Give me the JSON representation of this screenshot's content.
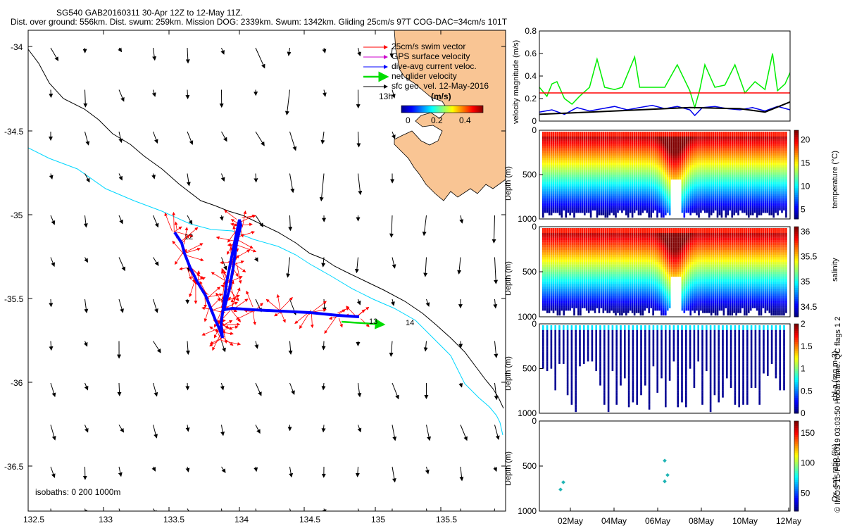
{
  "header": {
    "line1": "SG540 GAB20160311 30-Apr 12Z to 12-May 11Z.",
    "line2": "Dist. over ground: 556km. Dist. swum: 259km. Mission DOG: 2339km. Swum: 1342km. Gliding 25cm/s 97T COG-DAC=34cm/s 101T"
  },
  "map": {
    "legend": [
      {
        "label": "25cm/s swim vector",
        "color": "#ff0000"
      },
      {
        "label": "GPS surface velocity",
        "color": "#cc00cc"
      },
      {
        "label": "dive-avg current veloc.",
        "color": "#0000ff"
      },
      {
        "label": "net glider velocity",
        "color": "#00dd00"
      },
      {
        "label": "sfc geo. vel. 12-May-2016",
        "color": "#000000"
      }
    ],
    "colorbar_title": "(m/s)",
    "colorbar_ticks": [
      "0",
      "0.2",
      "0.4"
    ],
    "time_label": "13h",
    "isobath_label": "isobaths: 0   200  1000m",
    "track_markers": [
      "12",
      "13",
      "14"
    ],
    "land_color": "#f9c594",
    "coast_color": "#00d7ff",
    "xlim": [
      132.45,
      135.95
    ],
    "ylim": [
      -36.75,
      -33.9
    ],
    "xticks": [
      "132.5",
      "133",
      "133.5",
      "134",
      "134.5",
      "135",
      "135.5"
    ],
    "yticks": [
      "-34",
      "-34.5",
      "-35",
      "-35.5",
      "-36",
      "-36.5"
    ]
  },
  "chart_data": [
    {
      "type": "line",
      "ylabel": "velocity magnitude (m/s)",
      "ylim": [
        0,
        0.8
      ],
      "yticks": [
        "0",
        "0.2",
        "0.4",
        "0.6",
        "0.8"
      ],
      "series": [
        {
          "color": "#00ee00",
          "x": [
            0,
            0.03,
            0.05,
            0.07,
            0.1,
            0.13,
            0.16,
            0.2,
            0.23,
            0.26,
            0.3,
            0.33,
            0.38,
            0.4,
            0.45,
            0.5,
            0.55,
            0.6,
            0.62,
            0.64,
            0.66,
            0.7,
            0.74,
            0.78,
            0.82,
            0.86,
            0.9,
            0.93,
            0.95,
            0.98,
            1.0
          ],
          "y": [
            0.3,
            0.22,
            0.33,
            0.35,
            0.2,
            0.15,
            0.22,
            0.3,
            0.55,
            0.3,
            0.28,
            0.3,
            0.57,
            0.3,
            0.3,
            0.3,
            0.5,
            0.27,
            0.12,
            0.28,
            0.5,
            0.3,
            0.32,
            0.5,
            0.25,
            0.35,
            0.28,
            0.6,
            0.27,
            0.33,
            0.43
          ]
        },
        {
          "color": "#ff0000",
          "x": [
            0,
            1
          ],
          "y": [
            0.25,
            0.25
          ]
        },
        {
          "color": "#0000ee",
          "x": [
            0,
            0.05,
            0.1,
            0.15,
            0.2,
            0.25,
            0.3,
            0.35,
            0.4,
            0.45,
            0.5,
            0.55,
            0.6,
            0.62,
            0.65,
            0.7,
            0.75,
            0.8,
            0.85,
            0.9,
            0.95,
            1.0
          ],
          "y": [
            0.08,
            0.1,
            0.06,
            0.12,
            0.09,
            0.11,
            0.13,
            0.1,
            0.12,
            0.14,
            0.11,
            0.13,
            0.1,
            0.05,
            0.12,
            0.13,
            0.11,
            0.1,
            0.12,
            0.09,
            0.13,
            0.1
          ]
        },
        {
          "color": "#000000",
          "x": [
            0,
            0.2,
            0.4,
            0.6,
            0.8,
            0.9,
            1.0
          ],
          "y": [
            0.06,
            0.08,
            0.1,
            0.12,
            0.11,
            0.08,
            0.17
          ]
        }
      ]
    },
    {
      "type": "heatmap",
      "ylabel": "Depth (m)",
      "clabel": "temperature (°C)",
      "ylim": [
        0,
        1000
      ],
      "yticks": [
        "0",
        "500",
        "1000"
      ],
      "cticks": [
        "5",
        "10",
        "15",
        "20"
      ],
      "crange": [
        3,
        22
      ]
    },
    {
      "type": "heatmap",
      "ylabel": "Depth (m)",
      "clabel": "salinity",
      "ylim": [
        0,
        1000
      ],
      "yticks": [
        "0",
        "500",
        "1000"
      ],
      "cticks": [
        "34.5",
        "35",
        "35.5",
        "36"
      ],
      "crange": [
        34.3,
        36.1
      ]
    },
    {
      "type": "heatmap",
      "ylabel": "Depth (m)",
      "clabel": "chl-a (mg m-3)",
      "ylim": [
        0,
        1000
      ],
      "yticks": [
        "0",
        "500",
        "1000"
      ],
      "cticks": [
        "0",
        "0.5",
        "1",
        "1.5",
        "2"
      ],
      "crange": [
        0,
        2
      ]
    },
    {
      "type": "scatter",
      "ylabel": "Depth (m)",
      "clabel": "Ox. sat. ratio (%)",
      "ylim": [
        0,
        1000
      ],
      "yticks": [
        "0",
        "500",
        "1000"
      ],
      "cticks": [
        "50",
        "100",
        "150"
      ],
      "crange": [
        20,
        170
      ],
      "points": [
        {
          "x": "01May",
          "y": 760
        },
        {
          "x": "01May",
          "y": 680
        },
        {
          "x": "06May",
          "y": 440
        },
        {
          "x": "06May",
          "y": 600
        },
        {
          "x": "06May",
          "y": 670
        }
      ]
    }
  ],
  "time_axis": {
    "ticks": [
      "02May",
      "04May",
      "06May",
      "08May",
      "10May",
      "12May"
    ]
  },
  "side_note": "© IMOS 15-Feb-2019 03:03:50 Hobart time. QC flags 1  2"
}
